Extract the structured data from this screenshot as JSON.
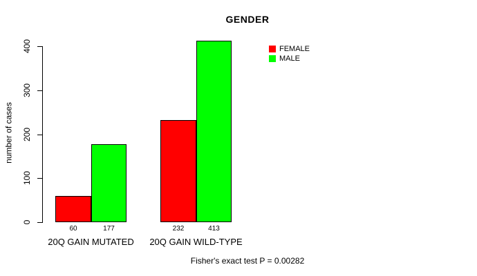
{
  "chart_data": {
    "type": "bar",
    "title": "GENDER",
    "xlabel": "",
    "ylabel": "number of cases",
    "ylim": [
      0,
      400
    ],
    "yticks": [
      "0",
      "100",
      "200",
      "300",
      "400"
    ],
    "ytick_values": [
      0,
      100,
      200,
      300,
      400
    ],
    "categories": [
      "20Q GAIN MUTATED",
      "20Q GAIN WILD-TYPE"
    ],
    "series": [
      {
        "name": "FEMALE",
        "color": "#ff0000",
        "values": [
          60,
          232
        ]
      },
      {
        "name": "MALE",
        "color": "#00ff00",
        "values": [
          177,
          413
        ]
      }
    ],
    "bar_value_labels": [
      [
        "60",
        "232"
      ],
      [
        "177",
        "413"
      ]
    ],
    "legend_position": "top-right",
    "grid": false,
    "axis_color": "#000000",
    "annotation": "Fisher's exact test P = 0.00282"
  }
}
